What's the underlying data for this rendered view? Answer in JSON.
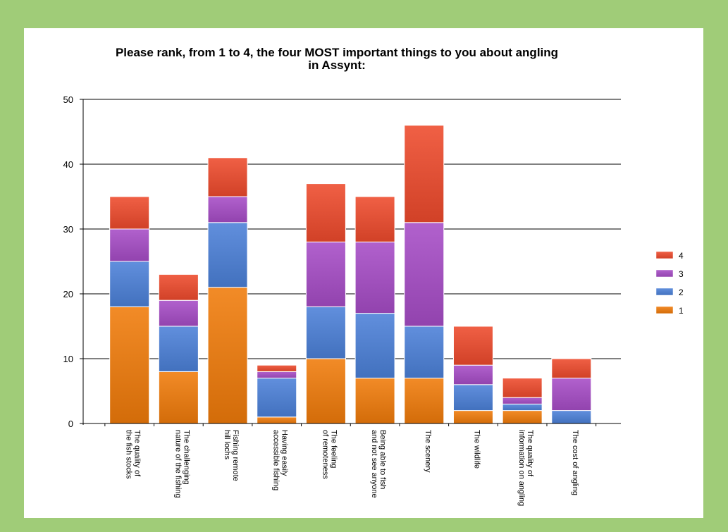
{
  "colors": {
    "page_background": "#a0cc78",
    "panel_background": "#ffffff",
    "series_4": "#ee4a2c",
    "series_3": "#a64cc6",
    "series_2": "#4b80d8",
    "series_1": "#f07b0a"
  },
  "chart_data": {
    "type": "bar",
    "stacked": true,
    "title": "Please rank, from 1 to 4, the four MOST important things to you about angling in Assynt:",
    "title_lines": [
      "Please rank, from 1 to 4, the four MOST important things to you about angling",
      "in Assynt:"
    ],
    "xlabel": "",
    "ylabel": "",
    "ylim": [
      0,
      50
    ],
    "yticks": [
      0,
      10,
      20,
      30,
      40,
      50
    ],
    "grid": true,
    "legend_position": "right",
    "categories": [
      [
        "The quality of",
        "the fish stocks"
      ],
      [
        "The challenging",
        "nature of the fishing"
      ],
      [
        "Fishing remote",
        "hill lochs"
      ],
      [
        "Having easily",
        "accessible fishing"
      ],
      [
        "The feeling",
        "of remoteness"
      ],
      [
        "Being able to fish",
        "and not see anyone"
      ],
      [
        "The scenery"
      ],
      [
        "The wildlife"
      ],
      [
        "The quality of",
        "information on angling"
      ],
      [
        "The cost of angling"
      ]
    ],
    "series": [
      {
        "name": "1",
        "color": "#f07b0a",
        "values": [
          18,
          8,
          21,
          1,
          10,
          7,
          7,
          2,
          2,
          0
        ]
      },
      {
        "name": "2",
        "color": "#4b80d8",
        "values": [
          7,
          7,
          10,
          6,
          8,
          10,
          8,
          4,
          1,
          2
        ]
      },
      {
        "name": "3",
        "color": "#a64cc6",
        "values": [
          5,
          4,
          4,
          1,
          10,
          11,
          16,
          3,
          1,
          5
        ]
      },
      {
        "name": "4",
        "color": "#ee4a2c",
        "values": [
          5,
          4,
          6,
          1,
          9,
          7,
          15,
          6,
          3,
          3
        ]
      }
    ],
    "legend_order": [
      "4",
      "3",
      "2",
      "1"
    ]
  }
}
